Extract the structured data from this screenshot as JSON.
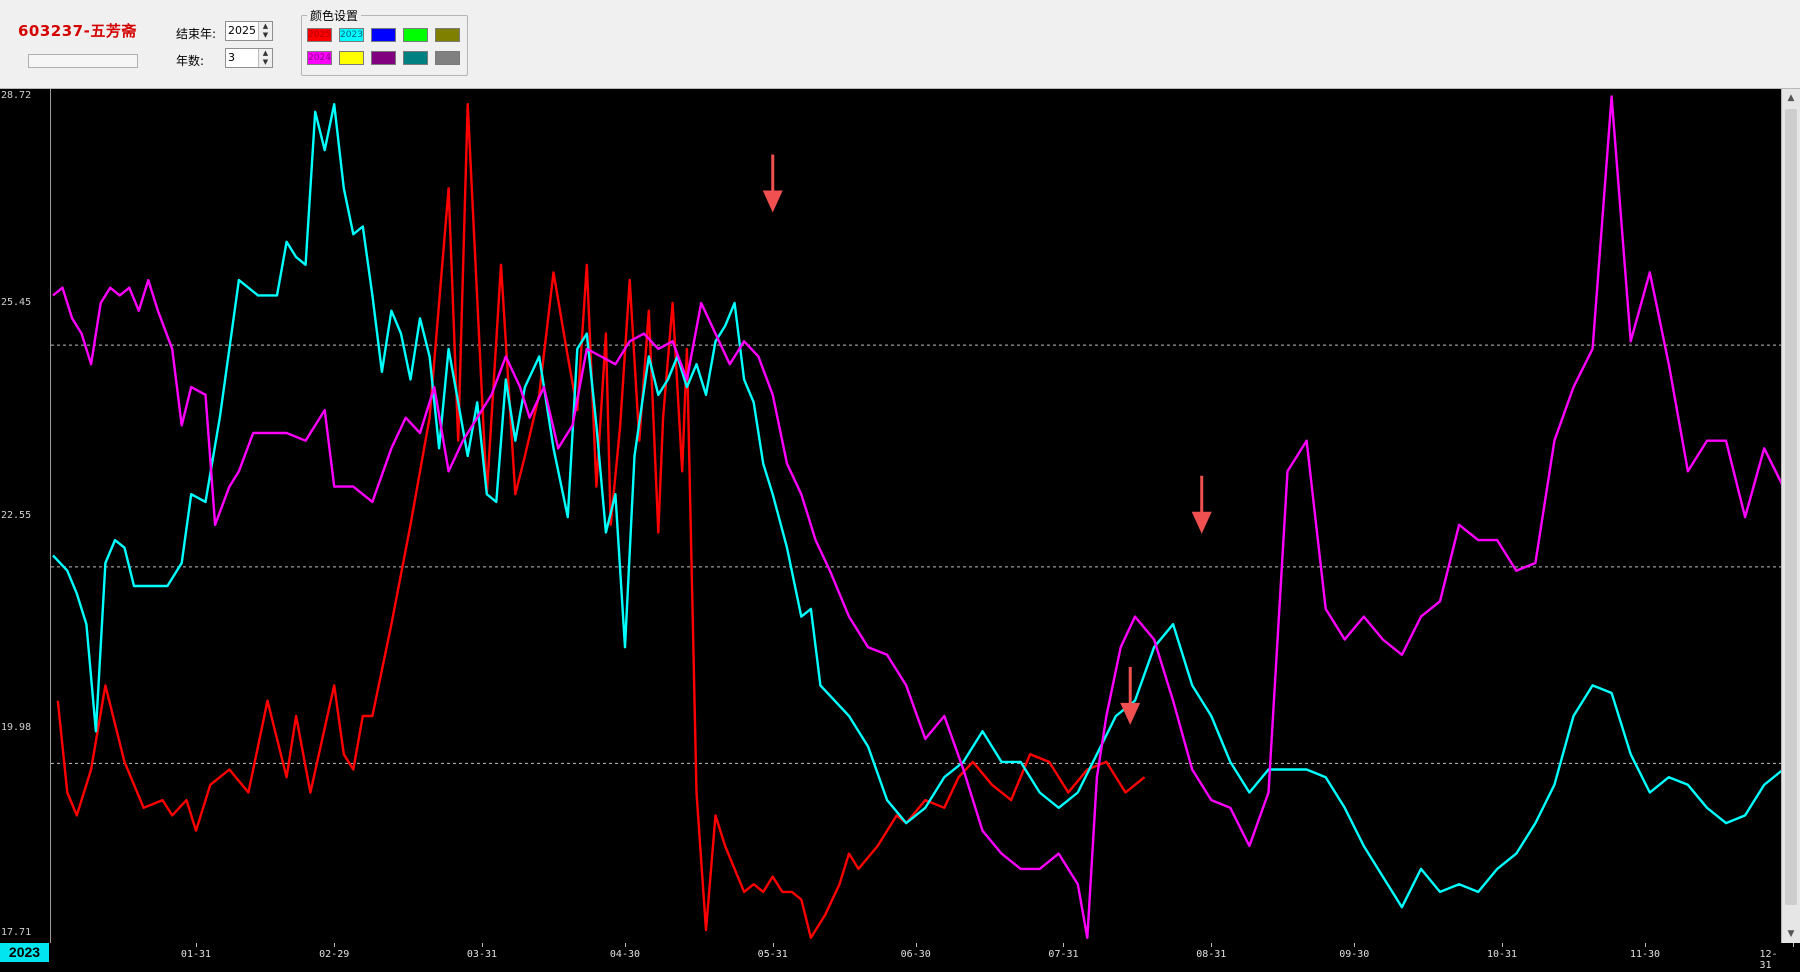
{
  "header": {
    "stock_title": "603237-五芳斋",
    "end_year_label": "结束年:",
    "end_year_value": "2025",
    "years_label": "年数:",
    "years_value": "3",
    "progress": 0
  },
  "color_settings": {
    "title": "颜色设置",
    "swatches": [
      {
        "label": "2025",
        "color": "#ff0000",
        "text_color": "#b00000"
      },
      {
        "label": "2023",
        "color": "#00ffff",
        "text_color": "#006080"
      },
      {
        "label": "",
        "color": "#0000ff",
        "text_color": "#000000"
      },
      {
        "label": "",
        "color": "#00ff00",
        "text_color": "#000000"
      },
      {
        "label": "",
        "color": "#808000",
        "text_color": "#000000"
      },
      {
        "label": "2024",
        "color": "#ff00ff",
        "text_color": "#800080"
      },
      {
        "label": "",
        "color": "#ffff00",
        "text_color": "#000000"
      },
      {
        "label": "",
        "color": "#800080",
        "text_color": "#000000"
      },
      {
        "label": "",
        "color": "#008080",
        "text_color": "#000000"
      },
      {
        "label": "",
        "color": "#808080",
        "text_color": "#000000"
      }
    ]
  },
  "chart_data": {
    "type": "line",
    "ylim": [
      17.71,
      28.72
    ],
    "yticks": [
      "28.72",
      "25.45",
      "22.55",
      "19.98",
      "17.71"
    ],
    "gridlines": [
      25.45,
      22.55,
      19.98
    ],
    "x_domain": [
      1,
      365
    ],
    "xtick_labels": [
      "01-31",
      "02-29",
      "03-31",
      "04-30",
      "05-31",
      "06-30",
      "07-31",
      "08-31",
      "09-30",
      "10-31",
      "11-30",
      "12-31"
    ],
    "xtick_days": [
      31,
      60,
      91,
      121,
      152,
      182,
      213,
      244,
      274,
      305,
      335,
      366
    ],
    "selected_year": "2023",
    "series": [
      {
        "name": "2025",
        "color": "#ff0000",
        "x": [
          2,
          4,
          6,
          9,
          12,
          16,
          20,
          24,
          26,
          29,
          31,
          34,
          36,
          38,
          42,
          46,
          50,
          52,
          55,
          60,
          62,
          64,
          66,
          68,
          72,
          76,
          80,
          84,
          86,
          88,
          92,
          95,
          98,
          100,
          103,
          106,
          109,
          111,
          113,
          115,
          117,
          118,
          120,
          122,
          124,
          126,
          128,
          129,
          131,
          133,
          134,
          136,
          138,
          140,
          142,
          144,
          146,
          148,
          150,
          152,
          154,
          156,
          158,
          160,
          163,
          166,
          168,
          170,
          174,
          178,
          180,
          184,
          188,
          191,
          194,
          198,
          202,
          206,
          210,
          214,
          218,
          222,
          226,
          230
        ],
        "y": [
          20.8,
          19.6,
          19.3,
          19.9,
          21.0,
          20.0,
          19.4,
          19.5,
          19.3,
          19.5,
          19.1,
          19.7,
          19.8,
          19.9,
          19.6,
          20.8,
          19.8,
          20.6,
          19.6,
          21.0,
          20.1,
          19.9,
          20.6,
          20.6,
          21.8,
          23.1,
          24.5,
          27.5,
          24.2,
          28.6,
          23.5,
          26.5,
          23.5,
          24.0,
          24.8,
          26.4,
          25.3,
          24.6,
          26.5,
          23.6,
          25.6,
          23.1,
          24.4,
          26.3,
          24.2,
          25.9,
          23.0,
          24.5,
          26.0,
          23.8,
          25.4,
          19.6,
          17.8,
          19.3,
          18.9,
          18.6,
          18.3,
          18.4,
          18.3,
          18.5,
          18.3,
          18.3,
          18.2,
          17.7,
          18.0,
          18.4,
          18.8,
          18.6,
          18.9,
          19.3,
          19.2,
          19.5,
          19.4,
          19.8,
          20.0,
          19.7,
          19.5,
          20.1,
          20.0,
          19.6,
          19.9,
          20.0,
          19.6,
          19.8
        ]
      },
      {
        "name": "2023",
        "color": "#00ffff",
        "x": [
          1,
          4,
          6,
          8,
          10,
          12,
          14,
          16,
          18,
          21,
          25,
          28,
          30,
          33,
          36,
          40,
          44,
          48,
          50,
          52,
          54,
          56,
          58,
          60,
          62,
          64,
          66,
          68,
          70,
          72,
          74,
          76,
          78,
          80,
          82,
          84,
          86,
          88,
          90,
          92,
          94,
          96,
          98,
          100,
          103,
          106,
          109,
          111,
          113,
          115,
          117,
          119,
          121,
          123,
          126,
          128,
          130,
          132,
          134,
          136,
          138,
          140,
          142,
          144,
          146,
          148,
          150,
          152,
          155,
          158,
          160,
          162,
          165,
          168,
          172,
          176,
          180,
          184,
          188,
          192,
          196,
          200,
          204,
          208,
          212,
          216,
          220,
          224,
          228,
          232,
          236,
          240,
          244,
          248,
          252,
          256,
          260,
          264,
          268,
          272,
          276,
          280,
          284,
          288,
          292,
          296,
          300,
          304,
          308,
          312,
          316,
          320,
          324,
          328,
          332,
          336,
          340,
          344,
          348,
          352,
          356,
          360,
          364,
          366
        ],
        "y": [
          22.7,
          22.5,
          22.2,
          21.8,
          20.4,
          22.6,
          22.9,
          22.8,
          22.3,
          22.3,
          22.3,
          22.6,
          23.5,
          23.4,
          24.5,
          26.3,
          26.1,
          26.1,
          26.8,
          26.6,
          26.5,
          28.5,
          28.0,
          28.6,
          27.5,
          26.9,
          27.0,
          26.1,
          25.1,
          25.9,
          25.6,
          25.0,
          25.8,
          25.3,
          24.1,
          25.4,
          24.7,
          24.0,
          24.7,
          23.5,
          23.4,
          25.0,
          24.2,
          24.9,
          25.3,
          24.1,
          23.2,
          25.4,
          25.6,
          24.4,
          23.0,
          23.5,
          21.5,
          24.0,
          25.3,
          24.8,
          25.0,
          25.3,
          24.9,
          25.2,
          24.8,
          25.5,
          25.7,
          26.0,
          25.0,
          24.7,
          23.9,
          23.5,
          22.8,
          21.9,
          22.0,
          21.0,
          20.8,
          20.6,
          20.2,
          19.5,
          19.2,
          19.4,
          19.8,
          20.0,
          20.4,
          20.0,
          20.0,
          19.6,
          19.4,
          19.6,
          20.1,
          20.6,
          20.8,
          21.5,
          21.8,
          21.0,
          20.6,
          20.0,
          19.6,
          19.9,
          19.9,
          19.9,
          19.8,
          19.4,
          18.9,
          18.5,
          18.1,
          18.6,
          18.3,
          18.4,
          18.3,
          18.6,
          18.8,
          19.2,
          19.7,
          20.6,
          21.0,
          20.9,
          20.1,
          19.6,
          19.8,
          19.7,
          19.4,
          19.2,
          19.3,
          19.7,
          19.9,
          19.9
        ]
      },
      {
        "name": "2024",
        "color": "#ff00ff",
        "x": [
          1,
          3,
          5,
          7,
          9,
          11,
          13,
          15,
          17,
          19,
          21,
          23,
          26,
          28,
          30,
          33,
          35,
          38,
          40,
          43,
          46,
          50,
          54,
          58,
          60,
          64,
          68,
          72,
          75,
          78,
          81,
          84,
          87,
          90,
          93,
          96,
          99,
          101,
          104,
          107,
          110,
          113,
          116,
          119,
          122,
          125,
          128,
          131,
          134,
          137,
          140,
          143,
          146,
          149,
          152,
          155,
          158,
          161,
          164,
          168,
          172,
          176,
          180,
          184,
          188,
          192,
          196,
          200,
          204,
          208,
          212,
          216,
          218,
          220,
          222,
          225,
          228,
          232,
          236,
          240,
          244,
          248,
          252,
          256,
          260,
          264,
          268,
          272,
          276,
          280,
          284,
          288,
          292,
          296,
          300,
          304,
          308,
          312,
          316,
          320,
          324,
          328,
          332,
          336,
          340,
          344,
          348,
          352,
          356,
          360,
          364,
          366
        ],
        "y": [
          26.1,
          26.2,
          25.8,
          25.6,
          25.2,
          26.0,
          26.2,
          26.1,
          26.2,
          25.9,
          26.3,
          25.9,
          25.4,
          24.4,
          24.9,
          24.8,
          23.1,
          23.6,
          23.8,
          24.3,
          24.3,
          24.3,
          24.2,
          24.6,
          23.6,
          23.6,
          23.4,
          24.1,
          24.5,
          24.3,
          24.9,
          23.8,
          24.2,
          24.5,
          24.8,
          25.3,
          24.9,
          24.5,
          24.9,
          24.1,
          24.4,
          25.4,
          25.3,
          25.2,
          25.5,
          25.6,
          25.4,
          25.5,
          25.0,
          26.0,
          25.6,
          25.2,
          25.5,
          25.3,
          24.8,
          23.9,
          23.5,
          22.9,
          22.5,
          21.9,
          21.5,
          21.4,
          21.0,
          20.3,
          20.6,
          19.9,
          19.1,
          18.8,
          18.6,
          18.6,
          18.8,
          18.4,
          17.7,
          19.8,
          20.6,
          21.5,
          21.9,
          21.6,
          20.8,
          19.9,
          19.5,
          19.4,
          18.9,
          19.6,
          23.8,
          24.2,
          22.0,
          21.6,
          21.9,
          21.6,
          21.4,
          21.9,
          22.1,
          23.1,
          22.9,
          22.9,
          22.5,
          22.6,
          24.2,
          24.9,
          25.4,
          28.7,
          25.5,
          26.4,
          25.2,
          23.8,
          24.2,
          24.2,
          23.2,
          24.1,
          23.6,
          23.6
        ]
      }
    ]
  },
  "annotations": {
    "arrows": [
      {
        "name": "arrow-june",
        "day": 152,
        "value": 27.0,
        "color": "#f05050"
      },
      {
        "name": "arrow-august-early",
        "day": 227,
        "value": 20.3,
        "color": "#f05050"
      },
      {
        "name": "arrow-august-late",
        "day": 242,
        "value": 22.8,
        "color": "#f05050"
      }
    ]
  }
}
